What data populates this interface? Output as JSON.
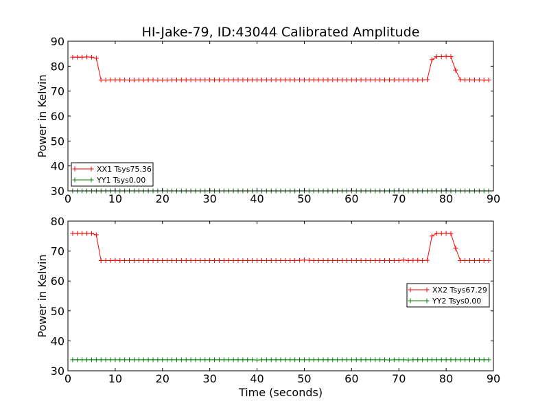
{
  "title": "HI-Jake-79, ID:43044 Calibrated Amplitude",
  "chart_data": [
    {
      "type": "line",
      "ylabel": "Power in Kelvin",
      "xlabel": "",
      "xlim": [
        0,
        90
      ],
      "ylim": [
        30,
        90
      ],
      "xticks": [
        "0",
        "10",
        "20",
        "30",
        "40",
        "50",
        "60",
        "70",
        "80",
        "90"
      ],
      "yticks": [
        "30",
        "40",
        "50",
        "60",
        "70",
        "80",
        "90"
      ],
      "legend_position": "lower-left",
      "series": [
        {
          "name": "XX1 Tsys75.36",
          "color": "#ff0000",
          "marker": "+",
          "x": [
            1.0,
            2.0,
            3.0,
            4.0,
            5.0,
            6.0,
            7.0,
            8.0,
            9.0,
            10.0,
            11.0,
            12.0,
            13.0,
            14.0,
            15.0,
            16.0,
            17.0,
            18.0,
            19.0,
            20.0,
            21.0,
            22.0,
            23.0,
            24.0,
            25.0,
            26.0,
            27.0,
            28.0,
            29.0,
            30.0,
            31.0,
            32.0,
            33.0,
            34.0,
            35.0,
            36.0,
            37.0,
            38.0,
            39.0,
            40.0,
            41.0,
            42.0,
            43.0,
            44.0,
            45.0,
            46.0,
            47.0,
            48.0,
            49.0,
            50.0,
            51.0,
            52.0,
            53.0,
            54.0,
            55.0,
            56.0,
            57.0,
            58.0,
            59.0,
            60.0,
            61.0,
            62.0,
            63.0,
            64.0,
            65.0,
            66.0,
            67.0,
            68.0,
            69.0,
            70.0,
            71.0,
            72.0,
            73.0,
            74.0,
            75.0,
            76.0,
            77.0,
            78.0,
            79.0,
            80.0,
            81.0,
            82.0,
            83.0,
            84.0,
            85.0,
            86.0,
            87.0,
            88.0,
            89.0
          ],
          "y": [
            83.6,
            83.6,
            83.6,
            83.7,
            83.6,
            83.2,
            74.4,
            74.4,
            74.5,
            74.5,
            74.5,
            74.5,
            74.4,
            74.4,
            74.5,
            74.4,
            74.5,
            74.5,
            74.4,
            74.4,
            74.4,
            74.5,
            74.5,
            74.5,
            74.5,
            74.5,
            74.5,
            74.5,
            74.5,
            74.5,
            74.5,
            74.5,
            74.5,
            74.5,
            74.5,
            74.5,
            74.5,
            74.5,
            74.5,
            74.5,
            74.5,
            74.5,
            74.5,
            74.5,
            74.5,
            74.5,
            74.5,
            74.5,
            74.5,
            74.5,
            74.5,
            74.5,
            74.5,
            74.5,
            74.5,
            74.5,
            74.5,
            74.5,
            74.5,
            74.5,
            74.5,
            74.5,
            74.5,
            74.5,
            74.5,
            74.5,
            74.5,
            74.5,
            74.5,
            74.5,
            74.5,
            74.5,
            74.5,
            74.5,
            74.5,
            74.6,
            82.6,
            83.8,
            83.8,
            83.9,
            83.8,
            78.4,
            74.6,
            74.5,
            74.5,
            74.5,
            74.5,
            74.4,
            74.4
          ]
        },
        {
          "name": "YY1 Tsys0.00",
          "color": "#008000",
          "marker": "+",
          "x": [
            1.0,
            2.0,
            3.0,
            4.0,
            5.0,
            6.0,
            7.0,
            8.0,
            9.0,
            10.0,
            11.0,
            12.0,
            13.0,
            14.0,
            15.0,
            16.0,
            17.0,
            18.0,
            19.0,
            20.0,
            21.0,
            22.0,
            23.0,
            24.0,
            25.0,
            26.0,
            27.0,
            28.0,
            29.0,
            30.0,
            31.0,
            32.0,
            33.0,
            34.0,
            35.0,
            36.0,
            37.0,
            38.0,
            39.0,
            40.0,
            41.0,
            42.0,
            43.0,
            44.0,
            45.0,
            46.0,
            47.0,
            48.0,
            49.0,
            50.0,
            51.0,
            52.0,
            53.0,
            54.0,
            55.0,
            56.0,
            57.0,
            58.0,
            59.0,
            60.0,
            61.0,
            62.0,
            63.0,
            64.0,
            65.0,
            66.0,
            67.0,
            68.0,
            69.0,
            70.0,
            71.0,
            72.0,
            73.0,
            74.0,
            75.0,
            76.0,
            77.0,
            78.0,
            79.0,
            80.0,
            81.0,
            82.0,
            83.0,
            84.0,
            85.0,
            86.0,
            87.0,
            88.0,
            89.0
          ],
          "y": [
            30.0,
            30.0,
            30.0,
            30.0,
            30.0,
            30.0,
            30.0,
            30.0,
            30.0,
            30.0,
            30.0,
            30.0,
            30.0,
            30.0,
            30.0,
            30.0,
            30.0,
            30.0,
            30.0,
            30.0,
            30.0,
            30.0,
            30.0,
            30.0,
            30.0,
            30.0,
            30.0,
            30.0,
            30.0,
            30.0,
            30.0,
            30.0,
            30.0,
            30.0,
            30.0,
            30.0,
            30.0,
            30.0,
            30.0,
            30.0,
            30.0,
            30.0,
            30.0,
            30.0,
            30.0,
            30.0,
            30.0,
            30.0,
            30.0,
            30.0,
            30.0,
            30.0,
            30.0,
            30.0,
            30.0,
            30.0,
            30.0,
            30.0,
            30.0,
            30.0,
            30.0,
            30.0,
            30.0,
            30.0,
            30.0,
            30.0,
            30.0,
            30.0,
            30.0,
            30.0,
            30.0,
            30.0,
            30.0,
            30.0,
            30.0,
            30.0,
            30.0,
            30.0,
            30.0,
            30.0,
            30.0,
            30.0,
            30.0,
            30.0,
            30.0,
            30.0,
            30.0,
            30.0,
            30.0
          ]
        }
      ]
    },
    {
      "type": "line",
      "ylabel": "Power in Kelvin",
      "xlabel": "Time (seconds)",
      "xlim": [
        0,
        90
      ],
      "ylim": [
        30,
        80
      ],
      "xticks": [
        "0",
        "10",
        "20",
        "30",
        "40",
        "50",
        "60",
        "70",
        "80",
        "90"
      ],
      "yticks": [
        "30",
        "40",
        "50",
        "60",
        "70",
        "80"
      ],
      "legend_position": "center-right",
      "series": [
        {
          "name": "XX2 Tsys67.29",
          "color": "#ff0000",
          "marker": "+",
          "x": [
            1.0,
            2.0,
            3.0,
            4.0,
            5.0,
            6.0,
            7.0,
            8.0,
            9.0,
            10.0,
            11.0,
            12.0,
            13.0,
            14.0,
            15.0,
            16.0,
            17.0,
            18.0,
            19.0,
            20.0,
            21.0,
            22.0,
            23.0,
            24.0,
            25.0,
            26.0,
            27.0,
            28.0,
            29.0,
            30.0,
            31.0,
            32.0,
            33.0,
            34.0,
            35.0,
            36.0,
            37.0,
            38.0,
            39.0,
            40.0,
            41.0,
            42.0,
            43.0,
            44.0,
            45.0,
            46.0,
            47.0,
            48.0,
            49.0,
            50.0,
            51.0,
            52.0,
            53.0,
            54.0,
            55.0,
            56.0,
            57.0,
            58.0,
            59.0,
            60.0,
            61.0,
            62.0,
            63.0,
            64.0,
            65.0,
            66.0,
            67.0,
            68.0,
            69.0,
            70.0,
            71.0,
            72.0,
            73.0,
            74.0,
            75.0,
            76.0,
            77.0,
            78.0,
            79.0,
            80.0,
            81.0,
            82.0,
            83.0,
            84.0,
            85.0,
            86.0,
            87.0,
            88.0,
            89.0
          ],
          "y": [
            75.9,
            75.9,
            75.9,
            75.9,
            75.9,
            75.4,
            66.8,
            66.8,
            66.8,
            66.9,
            66.8,
            66.8,
            66.8,
            66.8,
            66.8,
            66.8,
            66.8,
            66.8,
            66.8,
            66.8,
            66.8,
            66.8,
            66.8,
            66.8,
            66.8,
            66.8,
            66.8,
            66.8,
            66.8,
            66.8,
            66.8,
            66.8,
            66.8,
            66.8,
            66.8,
            66.8,
            66.8,
            66.8,
            66.8,
            66.8,
            66.8,
            66.8,
            66.8,
            66.8,
            66.8,
            66.8,
            66.8,
            66.8,
            66.9,
            67.0,
            66.9,
            66.8,
            66.8,
            66.8,
            66.8,
            66.8,
            66.8,
            66.8,
            66.8,
            66.8,
            66.8,
            66.8,
            66.8,
            66.8,
            66.8,
            66.8,
            66.8,
            66.8,
            66.8,
            66.8,
            67.0,
            66.8,
            66.9,
            66.9,
            66.8,
            66.9,
            75.0,
            75.9,
            75.9,
            76.0,
            75.8,
            71.0,
            66.8,
            66.8,
            66.8,
            66.8,
            66.8,
            66.8,
            66.8
          ]
        },
        {
          "name": "YY2 Tsys0.00",
          "color": "#008000",
          "marker": "+",
          "x": [
            1.0,
            2.0,
            3.0,
            4.0,
            5.0,
            6.0,
            7.0,
            8.0,
            9.0,
            10.0,
            11.0,
            12.0,
            13.0,
            14.0,
            15.0,
            16.0,
            17.0,
            18.0,
            19.0,
            20.0,
            21.0,
            22.0,
            23.0,
            24.0,
            25.0,
            26.0,
            27.0,
            28.0,
            29.0,
            30.0,
            31.0,
            32.0,
            33.0,
            34.0,
            35.0,
            36.0,
            37.0,
            38.0,
            39.0,
            40.0,
            41.0,
            42.0,
            43.0,
            44.0,
            45.0,
            46.0,
            47.0,
            48.0,
            49.0,
            50.0,
            51.0,
            52.0,
            53.0,
            54.0,
            55.0,
            56.0,
            57.0,
            58.0,
            59.0,
            60.0,
            61.0,
            62.0,
            63.0,
            64.0,
            65.0,
            66.0,
            67.0,
            68.0,
            69.0,
            70.0,
            71.0,
            72.0,
            73.0,
            74.0,
            75.0,
            76.0,
            77.0,
            78.0,
            79.0,
            80.0,
            81.0,
            82.0,
            83.0,
            84.0,
            85.0,
            86.0,
            87.0,
            88.0,
            89.0
          ],
          "y": [
            33.7,
            33.7,
            33.7,
            33.7,
            33.7,
            33.7,
            33.7,
            33.7,
            33.7,
            33.7,
            33.7,
            33.7,
            33.7,
            33.7,
            33.7,
            33.7,
            33.7,
            33.7,
            33.7,
            33.7,
            33.7,
            33.7,
            33.7,
            33.7,
            33.7,
            33.7,
            33.7,
            33.7,
            33.7,
            33.7,
            33.7,
            33.7,
            33.7,
            33.7,
            33.7,
            33.7,
            33.7,
            33.7,
            33.7,
            33.6,
            33.7,
            33.7,
            33.7,
            33.7,
            33.7,
            33.7,
            33.7,
            33.7,
            33.7,
            33.7,
            33.7,
            33.7,
            33.7,
            33.7,
            33.7,
            33.7,
            33.7,
            33.7,
            33.7,
            33.7,
            33.7,
            33.7,
            33.7,
            33.7,
            33.7,
            33.7,
            33.7,
            33.6,
            33.7,
            33.7,
            33.7,
            33.6,
            33.7,
            33.7,
            33.7,
            33.7,
            33.7,
            33.7,
            33.7,
            33.7,
            33.7,
            33.7,
            33.7,
            33.7,
            33.7,
            33.7,
            33.7,
            33.7,
            33.7
          ]
        }
      ]
    }
  ]
}
